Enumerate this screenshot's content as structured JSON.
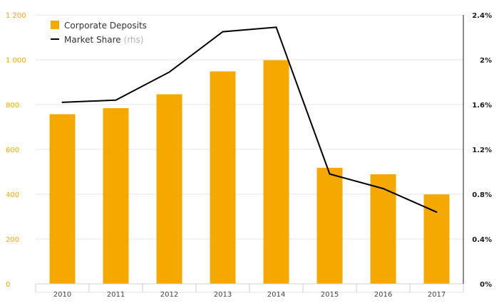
{
  "chart_data": {
    "type": "bar",
    "categories": [
      "2010",
      "2011",
      "2012",
      "2013",
      "2014",
      "2015",
      "2016",
      "2017"
    ],
    "series": [
      {
        "name": "Corporate Deposits",
        "type": "bar",
        "axis": "left",
        "color": "#F5A800",
        "values": [
          757,
          784,
          846,
          948,
          998,
          518,
          489,
          399
        ]
      },
      {
        "name": "Market Share",
        "name_suffix": "(rhs)",
        "type": "line",
        "axis": "right",
        "color": "#000000",
        "values": [
          1.62,
          1.64,
          1.89,
          2.25,
          2.29,
          0.98,
          0.85,
          0.64
        ]
      }
    ],
    "y_left": {
      "ylim": [
        0,
        1200
      ],
      "ticks": [
        0,
        200,
        400,
        600,
        800,
        1000,
        1200
      ],
      "tick_labels": [
        "0",
        "200",
        "400",
        "600",
        "800",
        "1 000",
        "1 200"
      ],
      "tick_color": "#F5A800"
    },
    "y_right": {
      "ylim": [
        0,
        2.4
      ],
      "ticks": [
        0,
        0.4,
        0.8,
        1.2,
        1.6,
        2.0,
        2.4
      ],
      "tick_labels": [
        "0%",
        "0.4%",
        "0.8%",
        "1.2%",
        "1.6%",
        "2%",
        "2.4%"
      ]
    },
    "grid": true,
    "legend_position": "top-left",
    "title": "",
    "xlabel": "",
    "ylabel": ""
  }
}
